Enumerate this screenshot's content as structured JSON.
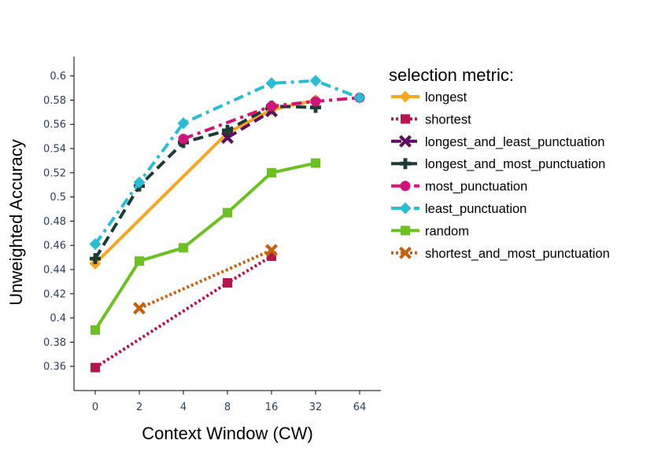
{
  "chart_data": {
    "type": "line",
    "title": "",
    "xlabel": "Context Window (CW)",
    "ylabel": "Unweighted Accuracy",
    "categories": [
      "0",
      "2",
      "4",
      "8",
      "16",
      "32",
      "64"
    ],
    "ylim": [
      0.34,
      0.616
    ],
    "yticks": [
      0.36,
      0.38,
      0.4,
      0.42,
      0.44,
      0.46,
      0.48,
      0.5,
      0.52,
      0.54,
      0.56,
      0.58,
      0.6
    ],
    "ytick_labels": [
      "0.36",
      "0.38",
      "0.4",
      "0.42",
      "0.44",
      "0.46",
      "0.48",
      "0.5",
      "0.52",
      "0.54",
      "0.56",
      "0.58",
      "0.6"
    ],
    "legend_title": "selection metric:",
    "legend_position": "right",
    "series": [
      {
        "name": "longest",
        "color": "#f5a623",
        "dash": "solid",
        "marker": "diamond",
        "values": [
          0.445,
          null,
          null,
          0.553,
          0.572,
          0.58,
          null
        ]
      },
      {
        "name": "shortest",
        "color": "#b5164b",
        "dash": "dot",
        "marker": "square",
        "values": [
          0.359,
          null,
          null,
          0.429,
          0.451,
          null,
          null
        ]
      },
      {
        "name": "longest_and_least_punctuation",
        "color": "#5c0f5c",
        "dash": "dash",
        "marker": "x",
        "values": [
          null,
          null,
          null,
          0.549,
          0.571,
          null,
          null
        ]
      },
      {
        "name": "longest_and_most_punctuation",
        "color": "#1d3b35",
        "dash": "dash",
        "marker": "cross",
        "values": [
          0.449,
          0.509,
          0.545,
          0.555,
          0.575,
          0.574,
          null
        ]
      },
      {
        "name": "most_punctuation",
        "color": "#d0157a",
        "dash": "dashdot",
        "marker": "circle",
        "values": [
          null,
          null,
          0.548,
          null,
          0.575,
          0.579,
          0.582
        ]
      },
      {
        "name": "least_punctuation",
        "color": "#2bbcd4",
        "dash": "dashdot",
        "marker": "diamond",
        "values": [
          0.461,
          0.512,
          0.561,
          null,
          0.594,
          0.596,
          0.582
        ]
      },
      {
        "name": "random",
        "color": "#6cc024",
        "dash": "solid",
        "marker": "square",
        "values": [
          0.39,
          0.447,
          0.458,
          0.487,
          0.52,
          0.528,
          null
        ]
      },
      {
        "name": "shortest_and_most_punctuation",
        "color": "#c4620e",
        "dash": "dot",
        "marker": "x",
        "values": [
          null,
          0.408,
          null,
          null,
          0.456,
          null,
          null
        ]
      }
    ]
  }
}
